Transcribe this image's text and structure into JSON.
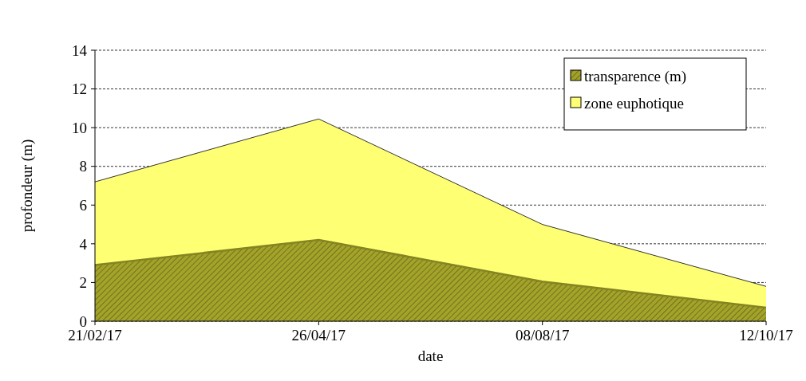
{
  "chart_data": {
    "type": "area",
    "xlabel": "date",
    "ylabel": "profondeur (m)",
    "categories": [
      "21/02/17",
      "26/04/17",
      "08/08/17",
      "12/10/17"
    ],
    "series": [
      {
        "name": "zone euphotique",
        "color": "#ffff73",
        "values": [
          7.2,
          10.45,
          5.0,
          1.8
        ]
      },
      {
        "name": "transparence (m)",
        "color": "#a3a32a",
        "values": [
          2.9,
          4.2,
          2.05,
          0.7
        ]
      }
    ],
    "ylim": [
      0,
      14
    ],
    "yticks": [
      0,
      2,
      4,
      6,
      8,
      10,
      12,
      14
    ],
    "grid": "y",
    "legend": "top right"
  }
}
